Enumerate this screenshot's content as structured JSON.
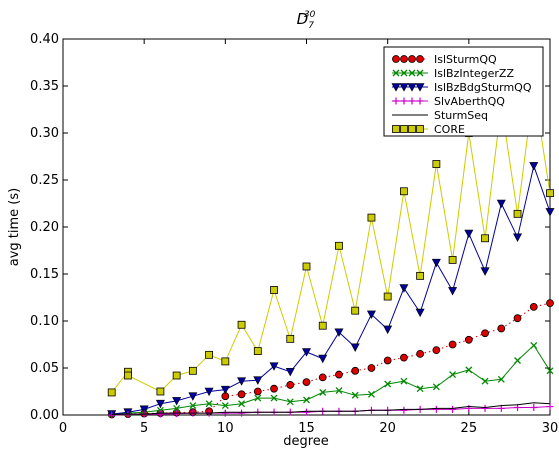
{
  "chart_data": {
    "type": "line",
    "title_base": "D",
    "title_sub": "7",
    "title_sup": "30",
    "xlabel": "degree",
    "ylabel": "avg time (s)",
    "xlim": [
      0,
      30
    ],
    "ylim": [
      0,
      0.4
    ],
    "xticks": [
      0,
      5,
      10,
      15,
      20,
      25,
      30
    ],
    "xtick_labels": [
      "0",
      "5",
      "10",
      "15",
      "20",
      "25",
      "30"
    ],
    "yticks": [
      0,
      0.05,
      0.1,
      0.15,
      0.2,
      0.25,
      0.3,
      0.35,
      0.4
    ],
    "ytick_labels": [
      "0.00",
      "0.05",
      "0.10",
      "0.15",
      "0.20",
      "0.25",
      "0.30",
      "0.35",
      "0.40"
    ],
    "grid": false,
    "legend_position": "top-right",
    "x": [
      3,
      4,
      5,
      6,
      7,
      8,
      9,
      10,
      11,
      12,
      13,
      14,
      15,
      16,
      17,
      18,
      19,
      20,
      21,
      22,
      23,
      24,
      25,
      26,
      27,
      28,
      29,
      30
    ],
    "series": [
      {
        "name": "IslSturmQQ",
        "color": "#cc0000",
        "line_style": "dotted",
        "marker": "circle",
        "values": [
          0.0005,
          0.001,
          0.0015,
          0.002,
          0.0025,
          0.003,
          0.004,
          0.02,
          0.022,
          0.025,
          0.028,
          0.032,
          0.035,
          0.04,
          0.043,
          0.047,
          0.05,
          0.058,
          0.061,
          0.065,
          0.069,
          0.075,
          0.08,
          0.087,
          0.092,
          0.103,
          0.115,
          0.119
        ]
      },
      {
        "name": "IslBzIntegerZZ",
        "color": "#008800",
        "line_style": "solid",
        "marker": "x",
        "values": [
          0.001,
          0.002,
          0.003,
          0.005,
          0.007,
          0.01,
          0.012,
          0.01,
          0.012,
          0.018,
          0.018,
          0.014,
          0.016,
          0.024,
          0.026,
          0.021,
          0.022,
          0.033,
          0.036,
          0.028,
          0.03,
          0.043,
          0.048,
          0.036,
          0.038,
          0.058,
          0.074,
          0.047
        ]
      },
      {
        "name": "IslBzBdgSturmQQ",
        "color": "#000099",
        "line_style": "solid",
        "marker": "triangle-down",
        "values": [
          0.001,
          0.003,
          0.006,
          0.012,
          0.015,
          0.02,
          0.025,
          0.027,
          0.036,
          0.037,
          0.052,
          0.046,
          0.067,
          0.06,
          0.088,
          0.072,
          0.107,
          0.091,
          0.135,
          0.109,
          0.162,
          0.132,
          0.193,
          0.153,
          0.225,
          0.189,
          0.265,
          0.216
        ]
      },
      {
        "name": "SlvAberthQQ",
        "color": "#cc00cc",
        "line_style": "solid",
        "marker": "plus",
        "values": [
          0.0,
          0.0005,
          0.001,
          0.001,
          0.0015,
          0.002,
          0.002,
          0.002,
          0.002,
          0.003,
          0.003,
          0.003,
          0.003,
          0.004,
          0.004,
          0.004,
          0.005,
          0.005,
          0.005,
          0.006,
          0.006,
          0.006,
          0.007,
          0.007,
          0.007,
          0.008,
          0.008,
          0.009
        ]
      },
      {
        "name": "SturmSeq",
        "color": "#000000",
        "line_style": "solid",
        "marker": "none",
        "values": [
          0.0005,
          0.001,
          0.001,
          0.002,
          0.002,
          0.002,
          0.002,
          0.003,
          0.003,
          0.003,
          0.003,
          0.003,
          0.004,
          0.004,
          0.004,
          0.004,
          0.005,
          0.005,
          0.006,
          0.006,
          0.007,
          0.007,
          0.009,
          0.008,
          0.01,
          0.011,
          0.013,
          0.012
        ]
      },
      {
        "name": "CORE",
        "color": "#cccc00",
        "line_style": "solid",
        "marker": "square",
        "x": [
          3,
          4,
          4,
          6,
          7,
          8,
          9,
          10,
          11,
          12,
          13,
          14,
          15,
          16,
          17,
          18,
          19,
          20,
          21,
          22,
          23,
          24,
          25,
          26,
          27,
          28,
          29,
          30
        ],
        "values": [
          0.024,
          0.046,
          0.042,
          0.025,
          0.042,
          0.047,
          0.064,
          0.057,
          0.096,
          0.068,
          0.133,
          0.081,
          0.158,
          0.095,
          0.18,
          0.111,
          0.21,
          0.126,
          0.238,
          0.148,
          0.267,
          0.165,
          0.3,
          0.188,
          0.33,
          0.214,
          0.348,
          0.236
        ]
      }
    ]
  }
}
